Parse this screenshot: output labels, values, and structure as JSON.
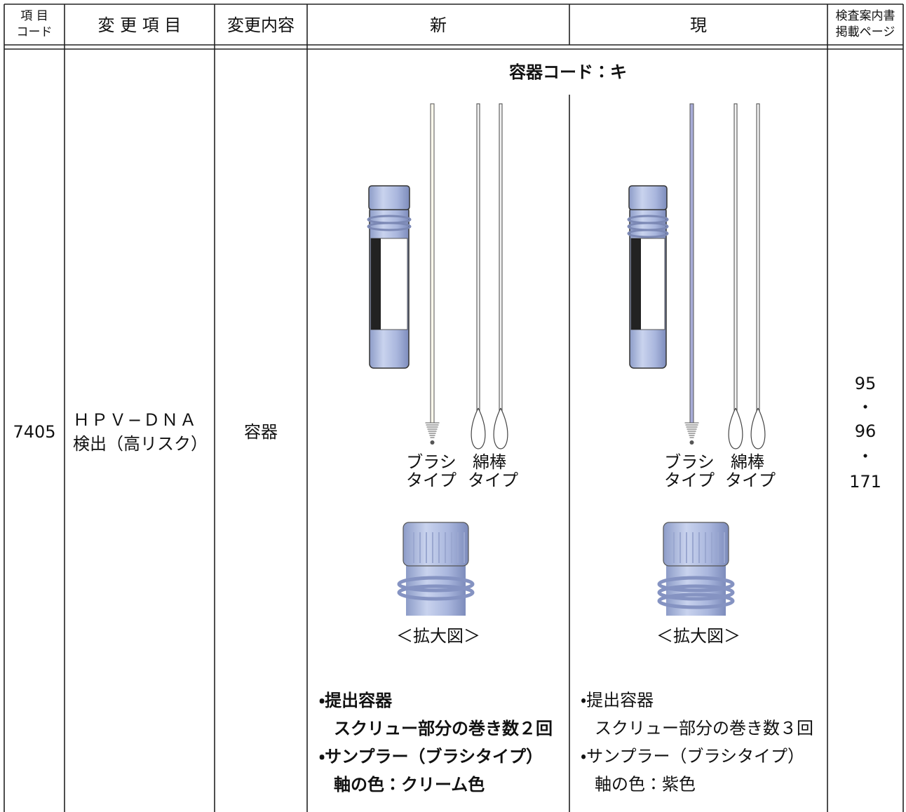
{
  "header": {
    "code": [
      "項 目",
      "コード"
    ],
    "item": "変 更 項 目",
    "change": "変更内容",
    "new": "新",
    "current": "現",
    "pages": [
      "検査案内書",
      "掲載ページ"
    ]
  },
  "row": {
    "code": "7405",
    "item": [
      "ＨＰＶ−ＤＮＡ",
      "検出（高リスク）"
    ],
    "change": "容器",
    "container_code": "容器コード：キ",
    "new": {
      "brush_label": [
        "ブラシ",
        "タイプ"
      ],
      "swab_label": [
        "綿棒",
        "タイプ"
      ],
      "zoom_caption": "＜拡大図＞",
      "notes": [
        "・提出容器",
        "スクリュー部分の巻き数２回",
        "・サンプラー（ブラシタイプ）",
        "軸の色：クリーム色"
      ]
    },
    "current": {
      "brush_label": [
        "ブラシ",
        "タイプ"
      ],
      "swab_label": [
        "綿棒",
        "タイプ"
      ],
      "zoom_caption": "＜拡大図＞",
      "notes": [
        "・提出容器",
        "スクリュー部分の巻き数３回",
        "・サンプラー（ブラシタイプ）",
        "軸の色：紫色"
      ]
    },
    "pages": [
      "95",
      "・",
      "96",
      "・",
      "171"
    ]
  }
}
